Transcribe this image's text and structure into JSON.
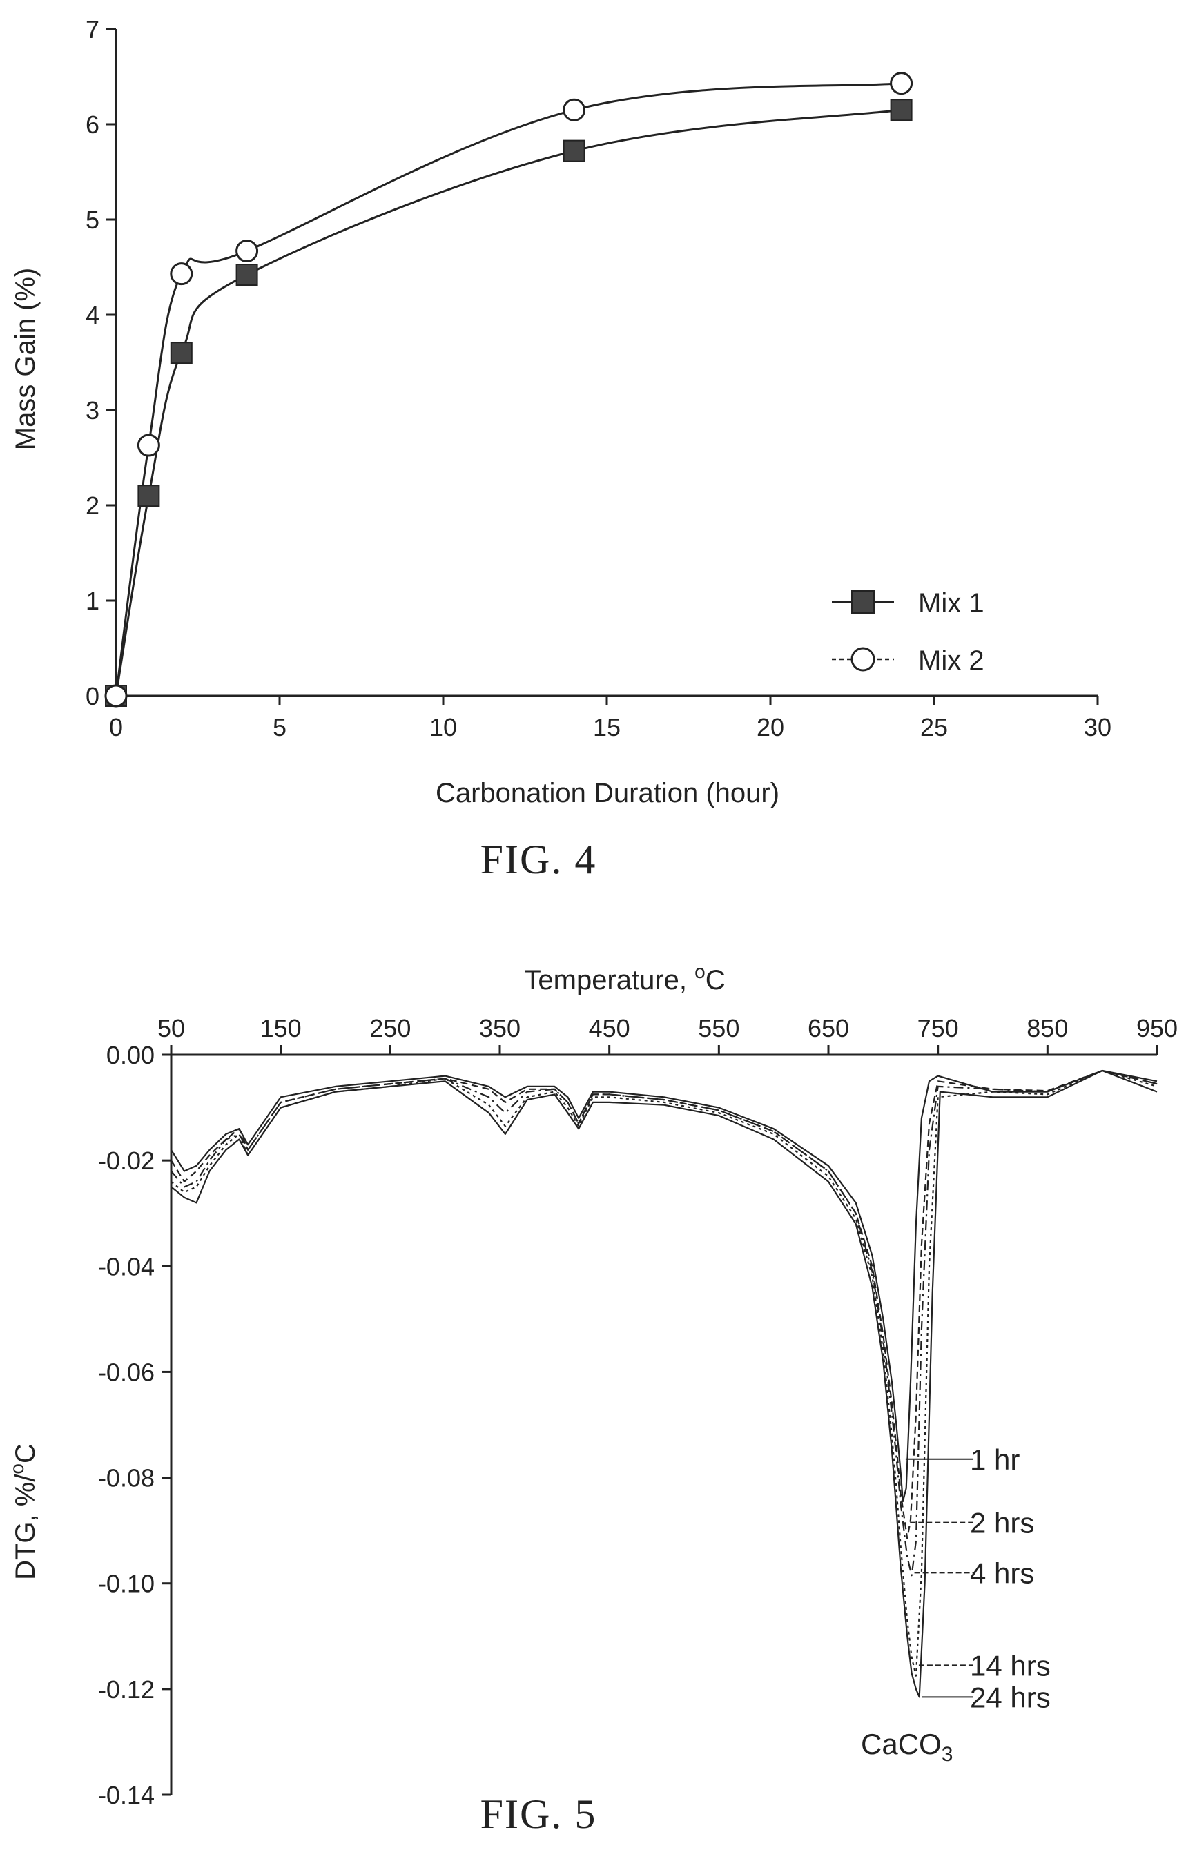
{
  "chart_data": [
    {
      "type": "line",
      "caption": "FIG. 4",
      "xlabel": "Carbonation Duration (hour)",
      "ylabel": "Mass Gain (%)",
      "xlim": [
        0,
        30
      ],
      "ylim": [
        0,
        7
      ],
      "xticks": [
        "0",
        "5",
        "10",
        "15",
        "20",
        "25",
        "30"
      ],
      "yticks": [
        "0",
        "1",
        "2",
        "3",
        "4",
        "5",
        "6",
        "7"
      ],
      "legend_placement": "bottom-right",
      "x": [
        0,
        1,
        2,
        4,
        14,
        24
      ],
      "series": [
        {
          "name": "Mix 1",
          "marker": "filled-square",
          "values": [
            0,
            2.1,
            3.6,
            4.42,
            5.72,
            6.15
          ]
        },
        {
          "name": "Mix 2",
          "marker": "open-circle",
          "values": [
            0,
            2.63,
            4.43,
            4.67,
            6.15,
            6.43
          ]
        }
      ]
    },
    {
      "type": "line",
      "caption": "FIG. 5",
      "xlabel": "Temperature, °C",
      "ylabel": "DTG, %/°C",
      "xaxis_position": "top",
      "xlim": [
        50,
        950
      ],
      "ylim": [
        -0.14,
        0.0
      ],
      "xticks": [
        "50",
        "150",
        "250",
        "350",
        "450",
        "550",
        "650",
        "750",
        "850",
        "950"
      ],
      "yticks": [
        "0.00",
        "-0.02",
        "-0.04",
        "-0.06",
        "-0.08",
        "-0.10",
        "-0.12",
        "-0.14"
      ],
      "peak_annotation": "CaCO3",
      "series": [
        {
          "name": "1 hr",
          "dash": "",
          "peak_x": 718,
          "peak_y": -0.0845,
          "label_y": -0.0765,
          "x": [
            50,
            62,
            73,
            85,
            100,
            112,
            120,
            150,
            200,
            250,
            300,
            340,
            355,
            375,
            400,
            412,
            422,
            435,
            450,
            500,
            550,
            600,
            650,
            675,
            690,
            700,
            708,
            712,
            716,
            718,
            721,
            725,
            730,
            735,
            742,
            750,
            800,
            850,
            900,
            950
          ],
          "values": [
            -0.018,
            -0.022,
            -0.021,
            -0.018,
            -0.015,
            -0.014,
            -0.017,
            -0.008,
            -0.006,
            -0.005,
            -0.004,
            -0.006,
            -0.008,
            -0.006,
            -0.006,
            -0.008,
            -0.012,
            -0.007,
            -0.007,
            -0.008,
            -0.01,
            -0.014,
            -0.021,
            -0.028,
            -0.038,
            -0.05,
            -0.062,
            -0.07,
            -0.079,
            -0.0845,
            -0.082,
            -0.062,
            -0.032,
            -0.012,
            -0.005,
            -0.004,
            -0.007,
            -0.007,
            -0.003,
            -0.005
          ]
        },
        {
          "name": "2 hrs",
          "dash": "10 6",
          "peak_x": 722,
          "peak_y": -0.0915,
          "label_y": -0.0885,
          "x": [
            50,
            62,
            73,
            85,
            100,
            112,
            120,
            150,
            200,
            250,
            300,
            340,
            355,
            375,
            400,
            412,
            422,
            435,
            450,
            500,
            550,
            600,
            650,
            675,
            690,
            700,
            708,
            712,
            716,
            722,
            725,
            730,
            735,
            742,
            750,
            800,
            850,
            900,
            950
          ],
          "values": [
            -0.02,
            -0.024,
            -0.022,
            -0.019,
            -0.016,
            -0.014,
            -0.018,
            -0.009,
            -0.0065,
            -0.0055,
            -0.0045,
            -0.0065,
            -0.009,
            -0.0065,
            -0.0065,
            -0.009,
            -0.013,
            -0.0075,
            -0.0075,
            -0.0085,
            -0.0105,
            -0.0145,
            -0.022,
            -0.03,
            -0.04,
            -0.053,
            -0.066,
            -0.074,
            -0.083,
            -0.0915,
            -0.088,
            -0.068,
            -0.036,
            -0.013,
            -0.005,
            -0.0065,
            -0.0068,
            -0.003,
            -0.0055
          ]
        },
        {
          "name": "4 hrs",
          "dash": "14 6 3 6",
          "peak_x": 726,
          "peak_y": -0.0985,
          "label_y": -0.098,
          "x": [
            50,
            62,
            73,
            85,
            100,
            112,
            120,
            150,
            200,
            250,
            300,
            340,
            355,
            375,
            400,
            412,
            422,
            435,
            450,
            500,
            550,
            600,
            650,
            675,
            690,
            700,
            708,
            712,
            716,
            722,
            726,
            730,
            735,
            742,
            750,
            800,
            850,
            900,
            950
          ],
          "values": [
            -0.022,
            -0.025,
            -0.024,
            -0.02,
            -0.016,
            -0.015,
            -0.018,
            -0.009,
            -0.0065,
            -0.0055,
            -0.0045,
            -0.008,
            -0.011,
            -0.007,
            -0.0065,
            -0.009,
            -0.013,
            -0.0075,
            -0.0075,
            -0.0085,
            -0.0105,
            -0.0145,
            -0.022,
            -0.03,
            -0.041,
            -0.054,
            -0.068,
            -0.076,
            -0.085,
            -0.095,
            -0.0985,
            -0.092,
            -0.052,
            -0.018,
            -0.006,
            -0.0065,
            -0.007,
            -0.003,
            -0.0055
          ]
        },
        {
          "name": "14 hrs",
          "dash": "4 5",
          "peak_x": 730,
          "peak_y": -0.1175,
          "label_y": -0.1155,
          "x": [
            50,
            62,
            73,
            85,
            100,
            112,
            120,
            150,
            200,
            250,
            300,
            340,
            355,
            375,
            400,
            412,
            422,
            435,
            450,
            500,
            550,
            600,
            650,
            675,
            690,
            700,
            708,
            712,
            716,
            722,
            726,
            730,
            735,
            742,
            750,
            800,
            850,
            900,
            950
          ],
          "values": [
            -0.024,
            -0.026,
            -0.025,
            -0.021,
            -0.017,
            -0.015,
            -0.019,
            -0.01,
            -0.007,
            -0.006,
            -0.0045,
            -0.0095,
            -0.0135,
            -0.008,
            -0.007,
            -0.01,
            -0.0135,
            -0.008,
            -0.008,
            -0.009,
            -0.011,
            -0.015,
            -0.023,
            -0.031,
            -0.042,
            -0.056,
            -0.072,
            -0.082,
            -0.093,
            -0.107,
            -0.114,
            -0.1175,
            -0.098,
            -0.04,
            -0.008,
            -0.007,
            -0.0075,
            -0.003,
            -0.006
          ]
        },
        {
          "name": "24 hrs",
          "dash": "",
          "peak_x": 733,
          "peak_y": -0.1215,
          "label_y": -0.1215,
          "x": [
            50,
            62,
            73,
            85,
            100,
            112,
            120,
            150,
            200,
            250,
            300,
            340,
            355,
            375,
            400,
            412,
            422,
            435,
            450,
            500,
            550,
            600,
            650,
            675,
            690,
            700,
            708,
            712,
            716,
            722,
            726,
            730,
            733,
            738,
            745,
            752,
            800,
            850,
            900,
            950
          ],
          "values": [
            -0.025,
            -0.027,
            -0.028,
            -0.022,
            -0.018,
            -0.016,
            -0.019,
            -0.01,
            -0.007,
            -0.006,
            -0.005,
            -0.011,
            -0.015,
            -0.0085,
            -0.0075,
            -0.011,
            -0.014,
            -0.009,
            -0.009,
            -0.0095,
            -0.0115,
            -0.016,
            -0.024,
            -0.032,
            -0.044,
            -0.058,
            -0.075,
            -0.086,
            -0.097,
            -0.11,
            -0.117,
            -0.12,
            -0.1215,
            -0.1,
            -0.045,
            -0.007,
            -0.008,
            -0.008,
            -0.003,
            -0.007
          ]
        }
      ]
    }
  ]
}
